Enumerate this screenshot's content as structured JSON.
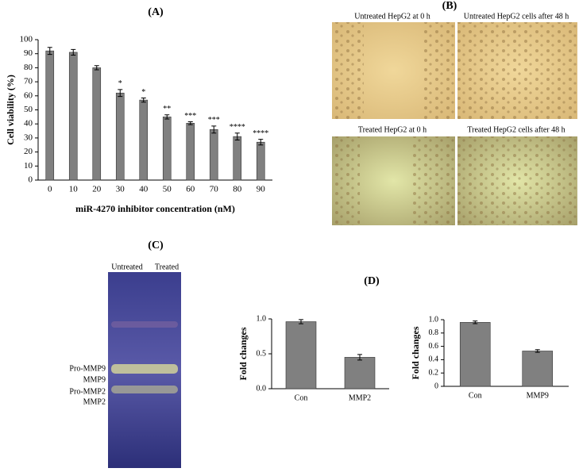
{
  "chart_data": [
    {
      "type": "bar",
      "title": "(A)",
      "xlabel": "miR-4270 inhibitor concentration (nM)",
      "ylabel": "Cell viability (%)",
      "categories": [
        "0",
        "10",
        "20",
        "30",
        "40",
        "50",
        "60",
        "70",
        "80",
        "90"
      ],
      "values": [
        92,
        91,
        80,
        62,
        57,
        45,
        40.5,
        36,
        31,
        27
      ],
      "errors": [
        2.5,
        2,
        1.5,
        2.5,
        1.5,
        1.5,
        1,
        2.5,
        2.5,
        2
      ],
      "annotations": [
        null,
        null,
        null,
        "*",
        "*",
        "**",
        "***",
        "***",
        "****",
        "****"
      ],
      "color": "#808080",
      "ylim": [
        0,
        100
      ],
      "yticks": [
        0,
        10,
        20,
        30,
        40,
        50,
        60,
        70,
        80,
        90,
        100
      ],
      "grid": false
    },
    {
      "type": "bar",
      "ylabel": "Fold changes",
      "categories": [
        "Con",
        "MMP2"
      ],
      "values": [
        0.96,
        0.45
      ],
      "errors": [
        0.03,
        0.04
      ],
      "color": "#808080",
      "ylim": [
        0,
        1
      ],
      "yticks": [
        {
          "value": 0,
          "label": "0.0"
        },
        0.5,
        {
          "value": 1,
          "label": "1.0"
        }
      ],
      "grid": false
    },
    {
      "type": "bar",
      "ylabel": "Fold changes",
      "categories": [
        "Con",
        "MMP9"
      ],
      "values": [
        0.96,
        0.53
      ],
      "errors": [
        0.02,
        0.02
      ],
      "color": "#808080",
      "ylim": [
        0,
        1
      ],
      "yticks": [
        0,
        0.2,
        0.4,
        0.6,
        0.8,
        {
          "value": 1,
          "label": "1.0"
        }
      ],
      "grid": false
    }
  ],
  "panel_labels": {
    "b": "(B)",
    "c": "(C)",
    "d": "(D)"
  },
  "micrographs": [
    "Untreated HepG2 at 0 h",
    "Untreated HepG2 cells after 48 h",
    "Treated HepG2 at 0 h",
    "Treated HepG2 cells after 48 h"
  ],
  "zymogram": {
    "lanes": [
      "Untreated",
      "Treated"
    ],
    "bands": [
      "Pro-MMP9",
      "MMP9",
      "Pro-MMP2",
      "MMP2"
    ]
  }
}
